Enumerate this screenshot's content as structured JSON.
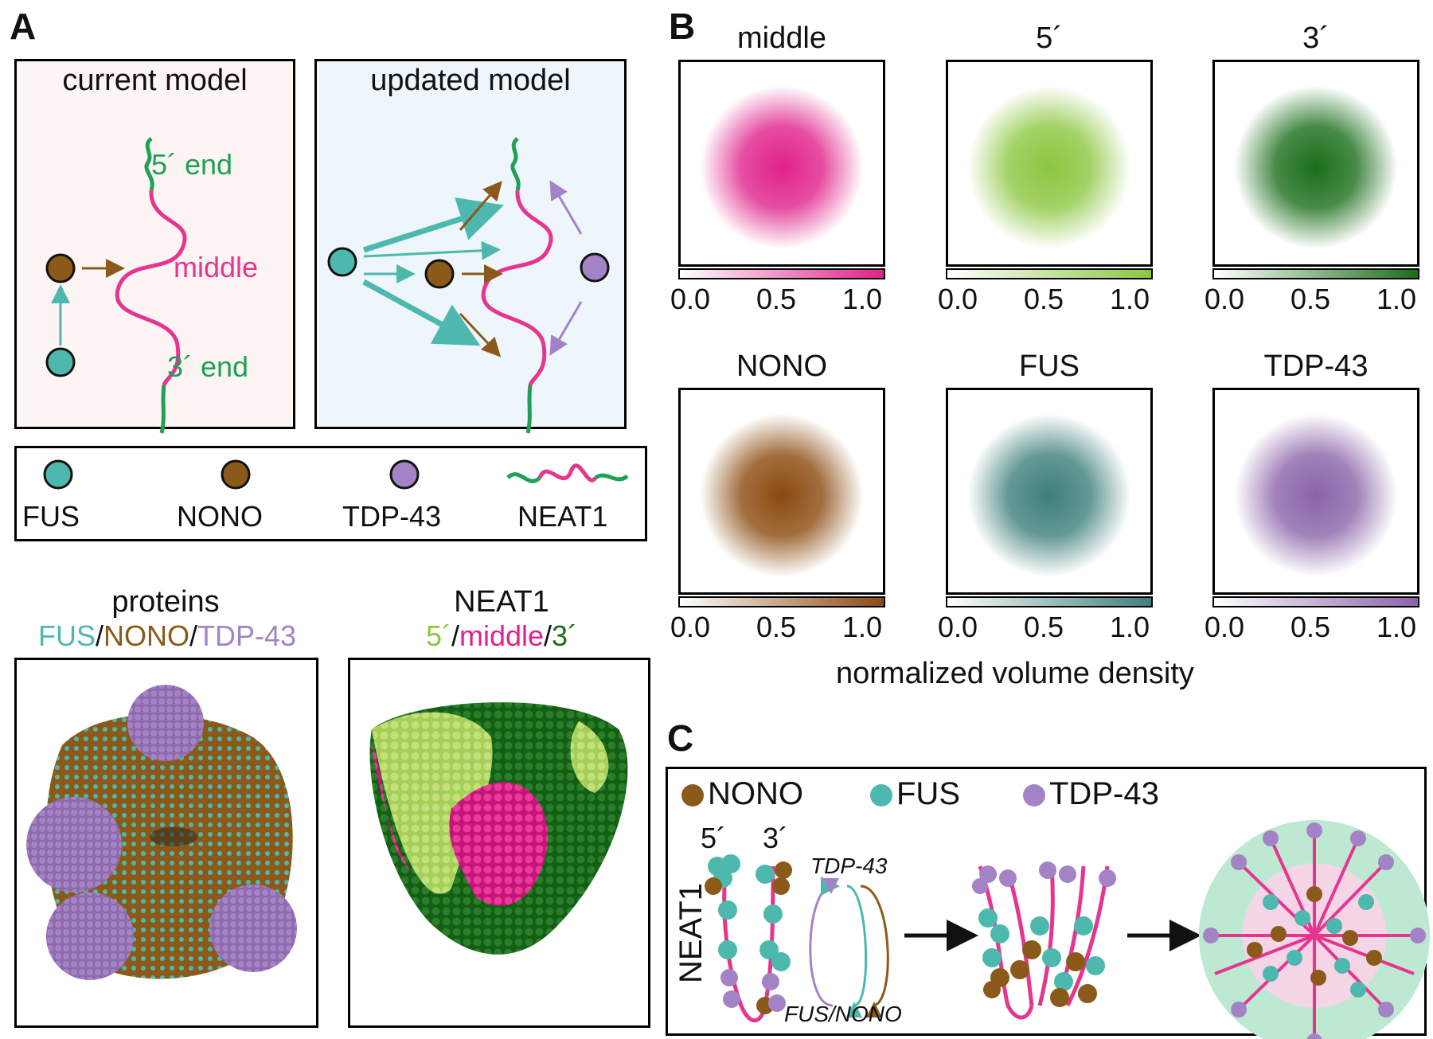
{
  "panels": {
    "a": "A",
    "b": "B",
    "c": "C"
  },
  "panel_a": {
    "current_model": "current model",
    "updated_model": "updated model",
    "end5": "5´ end",
    "middle": "middle",
    "end3": "3´ end",
    "legend": [
      "FUS",
      "NONO",
      "TDP-43",
      "NEAT1"
    ],
    "proteins_title": "proteins",
    "proteins_sub": [
      "FUS",
      "/",
      "NONO",
      "/",
      "TDP-43"
    ],
    "neat1_title": "NEAT1",
    "neat1_sub": [
      "5´",
      "/",
      "middle",
      "/",
      "3´"
    ]
  },
  "panel_b": {
    "maps": [
      {
        "title": "middle",
        "color": "#e0218a"
      },
      {
        "title": "5´",
        "color": "#8cc63f"
      },
      {
        "title": "3´",
        "color": "#1a6e1a"
      },
      {
        "title": "NONO",
        "color": "#8b4a0f"
      },
      {
        "title": "FUS",
        "color": "#3d7f7a"
      },
      {
        "title": "TDP-43",
        "color": "#8a63a8"
      }
    ],
    "ticks": [
      "0.0",
      "0.5",
      "1.0"
    ],
    "xlabel": "normalized volume density"
  },
  "panel_c": {
    "legend": [
      "NONO",
      "FUS",
      "TDP-43"
    ],
    "end5": "5´",
    "end3": "3´",
    "neat1": "NEAT1",
    "tdp": "TDP-43",
    "fusnono": "FUS/NONO"
  },
  "colors": {
    "fus": "#4db8ad",
    "nono": "#8b5a1a",
    "tdp": "#a383c6",
    "neat_green": "#1fa055",
    "neat_pink": "#e6358e",
    "current_bg": "#fdf5f3",
    "updated_bg": "#eef5fb"
  }
}
